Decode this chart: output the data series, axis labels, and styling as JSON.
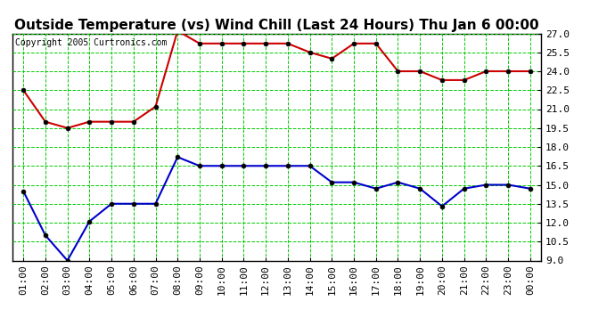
{
  "title": "Outside Temperature (vs) Wind Chill (Last 24 Hours) Thu Jan 6 00:00",
  "copyright": "Copyright 2005 Curtronics.com",
  "x_labels": [
    "01:00",
    "02:00",
    "03:00",
    "04:00",
    "05:00",
    "06:00",
    "07:00",
    "08:00",
    "09:00",
    "10:00",
    "11:00",
    "12:00",
    "13:00",
    "14:00",
    "15:00",
    "16:00",
    "17:00",
    "18:00",
    "19:00",
    "20:00",
    "21:00",
    "22:00",
    "23:00",
    "00:00"
  ],
  "red_data": [
    22.5,
    20.0,
    19.5,
    20.0,
    20.0,
    20.0,
    21.2,
    27.2,
    26.2,
    26.2,
    26.2,
    26.2,
    26.2,
    25.5,
    25.0,
    26.2,
    26.2,
    24.0,
    24.0,
    23.3,
    23.3,
    24.0,
    24.0,
    24.0
  ],
  "blue_data": [
    14.5,
    11.0,
    9.0,
    12.1,
    13.5,
    13.5,
    13.5,
    17.2,
    16.5,
    16.5,
    16.5,
    16.5,
    16.5,
    16.5,
    15.2,
    15.2,
    14.7,
    15.2,
    14.7,
    13.3,
    14.7,
    15.0,
    15.0,
    14.7
  ],
  "ylim": [
    9.0,
    27.0
  ],
  "yticks": [
    9.0,
    10.5,
    12.0,
    13.5,
    15.0,
    16.5,
    18.0,
    19.5,
    21.0,
    22.5,
    24.0,
    25.5,
    27.0
  ],
  "red_color": "#cc0000",
  "blue_color": "#0000cc",
  "grid_color": "#00cc00",
  "bg_color": "#ffffff",
  "title_fontsize": 11,
  "copyright_fontsize": 7,
  "tick_fontsize": 8
}
